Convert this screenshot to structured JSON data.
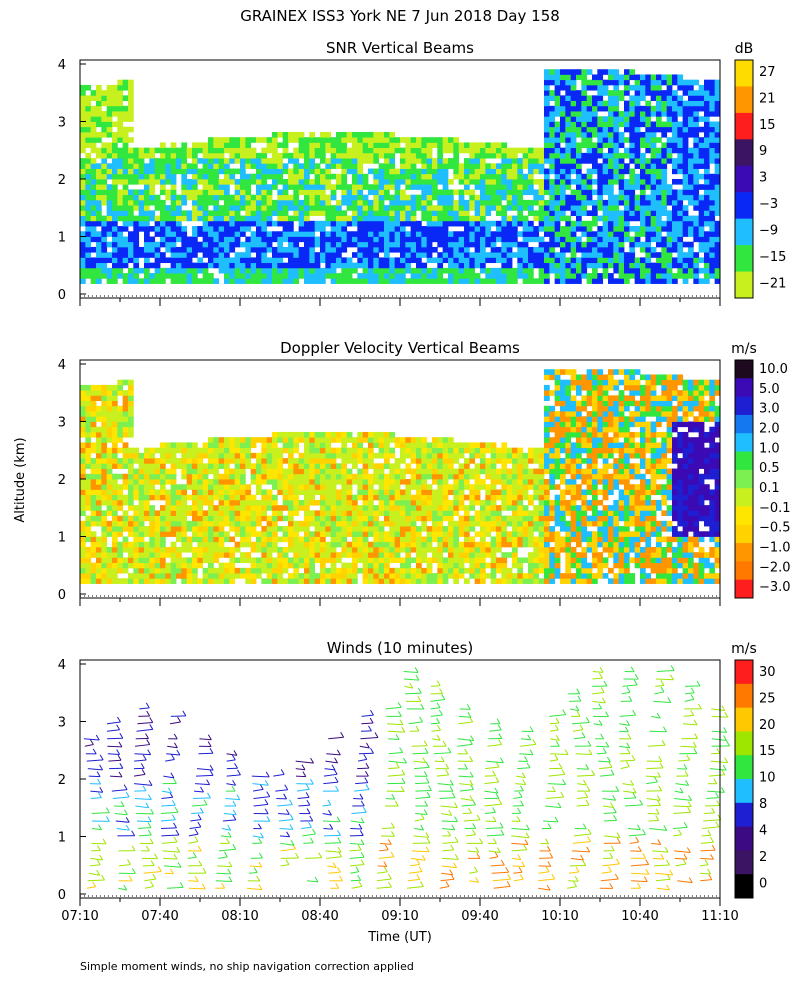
{
  "header": {
    "title": "GRAINEX ISS3 York NE   7 Jun 2018 Day 158"
  },
  "footer": {
    "note": "Simple moment winds, no ship navigation correction applied"
  },
  "axes": {
    "shared_ylabel": "Altitude (km)",
    "xlabel": "Time (UT)",
    "x_ticks": [
      "07:10",
      "07:40",
      "08:10",
      "08:40",
      "09:10",
      "09:40",
      "10:10",
      "10:40",
      "11:10"
    ],
    "y_ticks": [
      "0",
      "1",
      "2",
      "3",
      "4"
    ]
  },
  "colors": {
    "white": "#ffffff",
    "lime": "#c8f01e",
    "green": "#32e640",
    "lightgreen": "#7cf050",
    "cyan": "#1ebeff",
    "blue": "#0a28f5",
    "navy": "#1e1ed2",
    "indigo": "#3c0ab4",
    "purple": "#3c1464",
    "red": "#ff1e1e",
    "darkorange": "#ff7800",
    "orange": "#ff9600",
    "yellow": "#ffe600",
    "gold": "#ffd200"
  },
  "chart_data": [
    {
      "type": "heatmap",
      "title": "SNR Vertical Beams",
      "units": "dB",
      "x_range": [
        "07:10",
        "11:10"
      ],
      "ylim": [
        0,
        4
      ],
      "colorbar": {
        "labels": [
          "27",
          "21",
          "15",
          "9",
          "3",
          "−3",
          "−9",
          "−15",
          "−21"
        ],
        "colors": [
          "#ffdc00",
          "#ff9600",
          "#ff1e1e",
          "#3c1464",
          "#3c0ab4",
          "#0a28f5",
          "#1ebeff",
          "#32e640",
          "#c8f01e"
        ]
      }
    },
    {
      "type": "heatmap",
      "title": "Doppler Velocity Vertical Beams",
      "units": "m/s",
      "x_range": [
        "07:10",
        "11:10"
      ],
      "ylim": [
        0,
        4
      ],
      "colorbar": {
        "labels": [
          "10.0",
          "5.0",
          "3.0",
          "2.0",
          "1.0",
          "0.5",
          "0.1",
          "−0.1",
          "−0.5",
          "−1.0",
          "−2.0",
          "−3.0"
        ],
        "colors": [
          "#1e0a1e",
          "#3c0ab4",
          "#1e1ed2",
          "#1478f0",
          "#1ebeff",
          "#32e640",
          "#7cf050",
          "#c8f01e",
          "#ffe600",
          "#ffd200",
          "#ff9600",
          "#ff7800",
          "#ff1e1e"
        ]
      }
    },
    {
      "type": "scatter",
      "title": "Winds (10 minutes)",
      "units": "m/s",
      "x_range": [
        "07:10",
        "11:10"
      ],
      "ylim": [
        0,
        4
      ],
      "colorbar": {
        "labels": [
          "30",
          "25",
          "20",
          "15",
          "10",
          "8",
          "4",
          "2",
          "0"
        ],
        "colors": [
          "#ff1e1e",
          "#ff7800",
          "#ffc800",
          "#9ee600",
          "#32e640",
          "#1ebeff",
          "#1e1ed2",
          "#3c0a82",
          "#3c1464",
          "#000000"
        ]
      }
    }
  ]
}
